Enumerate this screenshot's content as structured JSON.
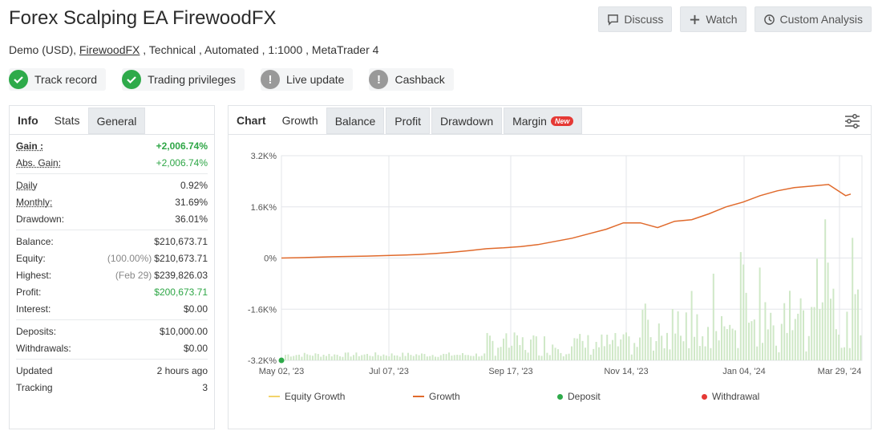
{
  "header": {
    "title": "Forex Scalping EA FirewoodFX",
    "subtitle_pre": "Demo (USD), ",
    "subtitle_link": "FirewoodFX",
    "subtitle_post": " , Technical , Automated , 1:1000 , MetaTrader 4",
    "buttons": {
      "discuss": "Discuss",
      "watch": "Watch",
      "custom": "Custom Analysis"
    }
  },
  "badges": [
    {
      "label": "Track record",
      "status": "ok"
    },
    {
      "label": "Trading privileges",
      "status": "ok"
    },
    {
      "label": "Live update",
      "status": "gray"
    },
    {
      "label": "Cashback",
      "status": "gray"
    }
  ],
  "left_tabs": [
    "Info",
    "Stats",
    "General"
  ],
  "stats": {
    "gain_label": "Gain :",
    "gain_value": "+2,006.74%",
    "abs_gain_label": "Abs. Gain:",
    "abs_gain_value": "+2,006.74%",
    "daily_label": "Daily",
    "daily_value": "0.92%",
    "monthly_label": "Monthly:",
    "monthly_value": "31.69%",
    "drawdown_label": "Drawdown:",
    "drawdown_value": "36.01%",
    "balance_label": "Balance:",
    "balance_value": "$210,673.71",
    "equity_label": "Equity:",
    "equity_note": "(100.00%)",
    "equity_value": "$210,673.71",
    "highest_label": "Highest:",
    "highest_note": "(Feb 29)",
    "highest_value": "$239,826.03",
    "profit_label": "Profit:",
    "profit_value": "$200,673.71",
    "interest_label": "Interest:",
    "interest_value": "$0.00",
    "deposits_label": "Deposits:",
    "deposits_value": "$10,000.00",
    "withdrawals_label": "Withdrawals:",
    "withdrawals_value": "$0.00",
    "updated_label": "Updated",
    "updated_value": "2 hours ago",
    "tracking_label": "Tracking",
    "tracking_value": "3"
  },
  "chart_tabs": {
    "chart": "Chart",
    "growth": "Growth",
    "balance": "Balance",
    "profit": "Profit",
    "drawdown": "Drawdown",
    "margin": "Margin",
    "new": "New"
  },
  "chart_data": {
    "type": "line",
    "y_ticks": [
      "3.2K%",
      "1.6K%",
      "0%",
      "-1.6K%",
      "-3.2K%"
    ],
    "ylim": [
      -3200,
      3200
    ],
    "x_ticks": [
      "May 02, '23",
      "Jul 07, '23",
      "Sep 17, '23",
      "Nov 14, '23",
      "Jan 04, '24",
      "Mar 29, '24"
    ],
    "series": [
      {
        "name": "Growth",
        "color": "#e06a2c",
        "x": [
          0,
          10,
          20,
          30,
          40,
          50,
          60,
          70,
          80,
          90,
          100,
          110,
          120,
          130,
          140,
          150,
          160,
          170,
          180,
          190,
          200,
          210,
          220,
          230,
          240,
          250,
          260,
          270,
          280,
          290,
          300,
          310,
          320,
          330,
          333
        ],
        "values": [
          0,
          10,
          25,
          40,
          50,
          60,
          75,
          90,
          110,
          140,
          180,
          230,
          290,
          320,
          360,
          420,
          520,
          620,
          760,
          900,
          1100,
          1100,
          950,
          1150,
          1200,
          1380,
          1600,
          1750,
          1950,
          2100,
          2200,
          2250,
          2300,
          1950,
          2000
        ]
      }
    ],
    "legend": [
      "Equity Growth",
      "Growth",
      "Deposit",
      "Withdrawal"
    ],
    "legend_colors": [
      "#f2d36b",
      "#e06a2c",
      "#2eaa4a",
      "#e53935"
    ]
  }
}
